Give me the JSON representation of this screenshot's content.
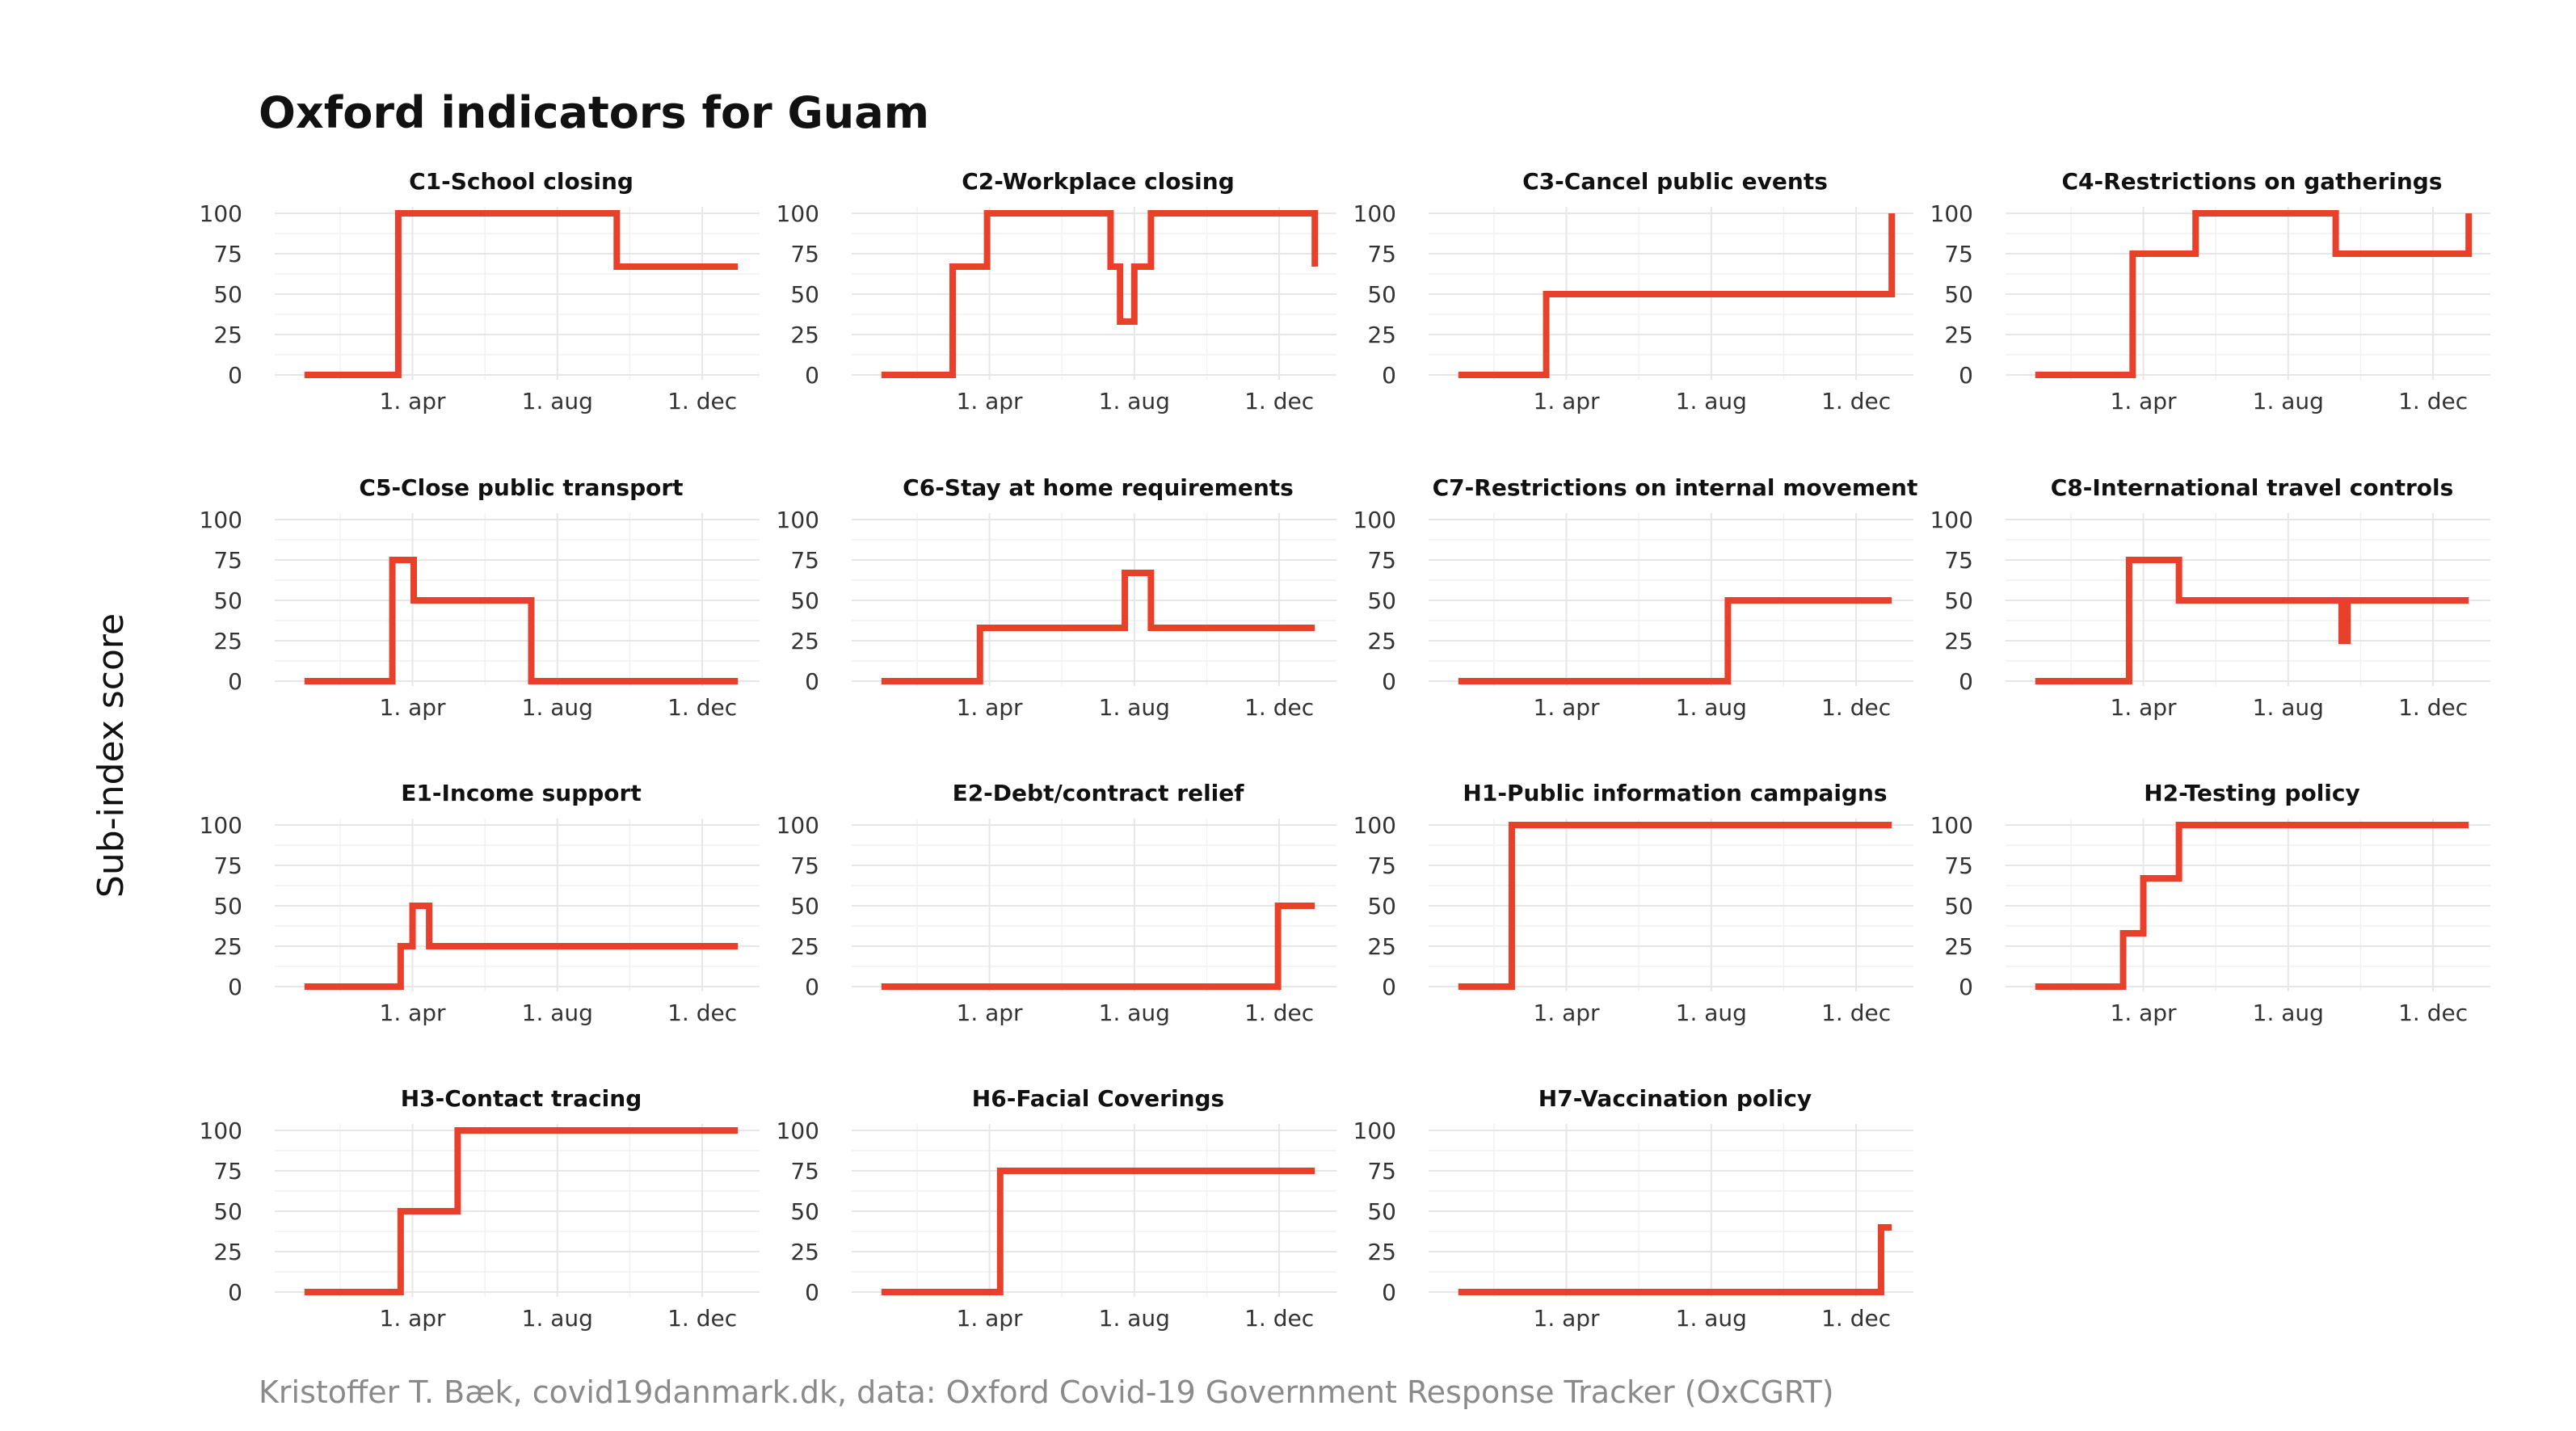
{
  "title": "Oxford indicators for Guam",
  "ylabel": "Sub-index score",
  "caption": "Kristoffer T. Bæk, covid19danmark.dk, data: Oxford Covid-19 Government Response Tracker (OxCGRT)",
  "colors": {
    "series": "#e8402a",
    "grid": "#e6e6e6"
  },
  "chart_data": [
    {
      "type": "line",
      "title": "C1-School closing",
      "x": [
        "1. jan",
        "3. mar",
        "20. mar",
        "20. sep",
        "31. dec"
      ],
      "values": [
        0,
        0,
        100,
        67,
        67
      ],
      "xlim": [
        "1. jan",
        "31. dec"
      ],
      "ylim": [
        0,
        100
      ],
      "yticks": [
        0,
        25,
        50,
        75,
        100
      ],
      "xticks": [
        "1. apr",
        "1. aug",
        "1. dec"
      ]
    },
    {
      "type": "line",
      "title": "C2-Workplace closing",
      "x": [
        "1. jan",
        "25. feb",
        "1. mar",
        "30. mar",
        "12. jul",
        "20. jul",
        "1. aug",
        "15. aug",
        "31. dec"
      ],
      "values": [
        0,
        0,
        67,
        100,
        67,
        33,
        67,
        100,
        67
      ],
      "xlim": [
        "1. jan",
        "31. dec"
      ],
      "ylim": [
        0,
        100
      ],
      "yticks": [
        0,
        25,
        50,
        75,
        100
      ],
      "xticks": [
        "1. apr",
        "1. aug",
        "1. dec"
      ]
    },
    {
      "type": "line",
      "title": "C3-Cancel public events",
      "x": [
        "1. jan",
        "12. mar",
        "15. mar",
        "31. dec"
      ],
      "values": [
        0,
        0,
        50,
        100
      ],
      "xlim": [
        "1. jan",
        "31. dec"
      ],
      "ylim": [
        0,
        100
      ],
      "yticks": [
        0,
        25,
        50,
        75,
        100
      ],
      "xticks": [
        "1. apr",
        "1. aug",
        "1. dec"
      ]
    },
    {
      "type": "line",
      "title": "C4-Restrictions on gatherings",
      "x": [
        "1. jan",
        "22. mar",
        "23. mar",
        "15. may",
        "10. sep",
        "31. dec"
      ],
      "values": [
        0,
        0,
        75,
        100,
        75,
        100
      ],
      "xlim": [
        "1. jan",
        "31. dec"
      ],
      "ylim": [
        0,
        100
      ],
      "yticks": [
        0,
        25,
        50,
        75,
        100
      ],
      "xticks": [
        "1. apr",
        "1. aug",
        "1. dec"
      ]
    },
    {
      "type": "line",
      "title": "C5-Close public transport",
      "x": [
        "1. jan",
        "15. mar",
        "2. apr",
        "10. jul",
        "31. dec"
      ],
      "values": [
        0,
        75,
        50,
        0,
        0
      ],
      "xlim": [
        "1. jan",
        "31. dec"
      ],
      "ylim": [
        0,
        100
      ],
      "yticks": [
        0,
        25,
        50,
        75,
        100
      ],
      "xticks": [
        "1. apr",
        "1. aug",
        "1. dec"
      ]
    },
    {
      "type": "line",
      "title": "C6-Stay at home requirements",
      "x": [
        "1. jan",
        "24. mar",
        "24. jul",
        "15. aug",
        "31. dec"
      ],
      "values": [
        0,
        33,
        67,
        33,
        33
      ],
      "xlim": [
        "1. jan",
        "31. dec"
      ],
      "ylim": [
        0,
        100
      ],
      "yticks": [
        0,
        25,
        50,
        75,
        100
      ],
      "xticks": [
        "1. apr",
        "1. aug",
        "1. dec"
      ]
    },
    {
      "type": "line",
      "title": "C7-Restrictions on internal movement",
      "x": [
        "1. jan",
        "15. aug",
        "31. dec"
      ],
      "values": [
        0,
        50,
        50
      ],
      "xlim": [
        "1. jan",
        "31. dec"
      ],
      "ylim": [
        0,
        100
      ],
      "yticks": [
        0,
        25,
        50,
        75,
        100
      ],
      "xticks": [
        "1. apr",
        "1. aug",
        "1. dec"
      ]
    },
    {
      "type": "line",
      "title": "C8-International travel controls",
      "x": [
        "1. jan",
        "20. mar",
        "1. may",
        "15. sep",
        "20. sep",
        "31. dec"
      ],
      "values": [
        0,
        75,
        50,
        25,
        50,
        50
      ],
      "xlim": [
        "1. jan",
        "31. dec"
      ],
      "ylim": [
        0,
        100
      ],
      "yticks": [
        0,
        25,
        50,
        75,
        100
      ],
      "xticks": [
        "1. apr",
        "1. aug",
        "1. dec"
      ]
    },
    {
      "type": "line",
      "title": "E1-Income support",
      "x": [
        "1. jan",
        "22. mar",
        "1. apr",
        "15. apr",
        "31. dec"
      ],
      "values": [
        0,
        25,
        50,
        25,
        25
      ],
      "xlim": [
        "1. jan",
        "31. dec"
      ],
      "ylim": [
        0,
        100
      ],
      "yticks": [
        0,
        25,
        50,
        75,
        100
      ],
      "xticks": [
        "1. apr",
        "1. aug",
        "1. dec"
      ]
    },
    {
      "type": "line",
      "title": "E2-Debt/contract relief",
      "x": [
        "1. jan",
        "30. nov",
        "31. dec"
      ],
      "values": [
        0,
        50,
        50
      ],
      "xlim": [
        "1. jan",
        "31. dec"
      ],
      "ylim": [
        0,
        100
      ],
      "yticks": [
        0,
        25,
        50,
        75,
        100
      ],
      "xticks": [
        "1. apr",
        "1. aug",
        "1. dec"
      ]
    },
    {
      "type": "line",
      "title": "H1-Public information campaigns",
      "x": [
        "1. jan",
        "15. feb",
        "31. dec"
      ],
      "values": [
        0,
        100,
        100
      ],
      "xlim": [
        "1. jan",
        "31. dec"
      ],
      "ylim": [
        0,
        100
      ],
      "yticks": [
        0,
        25,
        50,
        75,
        100
      ],
      "xticks": [
        "1. apr",
        "1. aug",
        "1. dec"
      ]
    },
    {
      "type": "line",
      "title": "H2-Testing policy",
      "x": [
        "1. jan",
        "15. mar",
        "1. apr",
        "15. apr",
        "1. may",
        "31. dec"
      ],
      "values": [
        0,
        33,
        67,
        67,
        100,
        100
      ],
      "xlim": [
        "1. jan",
        "31. dec"
      ],
      "ylim": [
        0,
        100
      ],
      "yticks": [
        0,
        25,
        50,
        75,
        100
      ],
      "xticks": [
        "1. apr",
        "1. aug",
        "1. dec"
      ]
    },
    {
      "type": "line",
      "title": "H3-Contact tracing",
      "x": [
        "1. jan",
        "22. mar",
        "9. may",
        "31. dec"
      ],
      "values": [
        0,
        50,
        100,
        100
      ],
      "xlim": [
        "1. jan",
        "31. dec"
      ],
      "ylim": [
        0,
        100
      ],
      "yticks": [
        0,
        25,
        50,
        75,
        100
      ],
      "xticks": [
        "1. apr",
        "1. aug",
        "1. dec"
      ]
    },
    {
      "type": "line",
      "title": "H6-Facial Coverings",
      "x": [
        "1. jan",
        "10. apr",
        "31. dec"
      ],
      "values": [
        0,
        75,
        75
      ],
      "xlim": [
        "1. jan",
        "31. dec"
      ],
      "ylim": [
        0,
        100
      ],
      "yticks": [
        0,
        25,
        50,
        75,
        100
      ],
      "xticks": [
        "1. apr",
        "1. aug",
        "1. dec"
      ]
    },
    {
      "type": "line",
      "title": "H7-Vaccination policy",
      "x": [
        "1. jan",
        "22. dec",
        "31. dec"
      ],
      "values": [
        0,
        40,
        40
      ],
      "xlim": [
        "1. jan",
        "31. dec"
      ],
      "ylim": [
        0,
        100
      ],
      "yticks": [
        0,
        25,
        50,
        75,
        100
      ],
      "xticks": [
        "1. apr",
        "1. aug",
        "1. dec"
      ]
    }
  ]
}
